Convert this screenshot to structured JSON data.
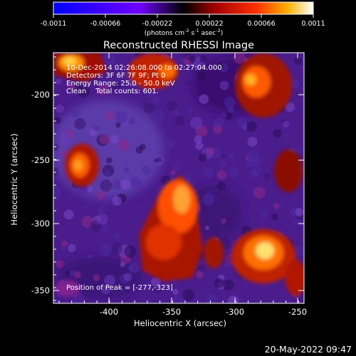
{
  "colorbar": {
    "ticks": [
      "-0.0011",
      "-0.00066",
      "-0.00022",
      "0.00022",
      "0.00066",
      "0.0011"
    ],
    "unit_parts": [
      "(photons cm",
      "-2",
      " s",
      "-1",
      " asec",
      "-2",
      ")"
    ]
  },
  "title": "Reconstructed RHESSI Image",
  "info": {
    "time": "10-Dec-2014 02:26:08.000 to 02:27:04.000",
    "detectors": "Detectors: 3F 6F 7F 9F; Pt 0",
    "energy": "Energy Range: 25.0 - 50.0 keV",
    "clean": "Clean    Total counts: 601."
  },
  "peak_label": "Position of Peak = [-277,-323]",
  "axes": {
    "xlabel": "Heliocentric X (arcsec)",
    "ylabel": "Heliocentric Y (arcsec)",
    "xticks": [
      "-400",
      "-350",
      "-300",
      "-250"
    ],
    "yticks": [
      "-200",
      "-250",
      "-300",
      "-350"
    ]
  },
  "date_stamp": "20-May-2022 09:47",
  "colors": {
    "background": "#000000",
    "text": "#ffffff"
  }
}
